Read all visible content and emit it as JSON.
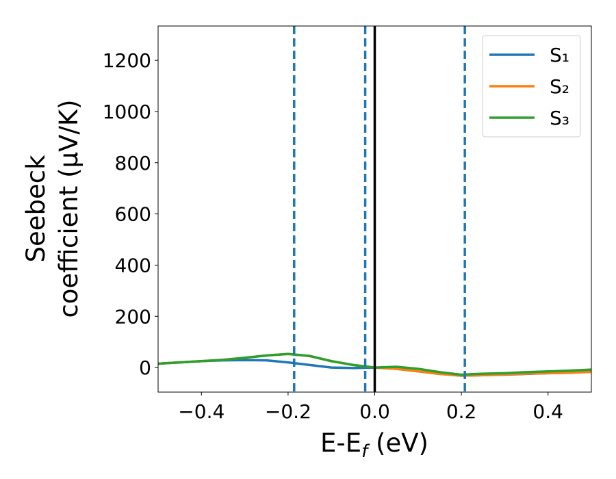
{
  "chart_data": {
    "type": "line",
    "x_label": [
      "E-E",
      "f",
      " (eV)"
    ],
    "y_label": [
      "Seebeck",
      "coefficient  (μV/K)"
    ],
    "x": [
      -0.5,
      -0.45,
      -0.4,
      -0.35,
      -0.3,
      -0.25,
      -0.2,
      -0.15,
      -0.1,
      -0.05,
      0,
      0.05,
      0.1,
      0.15,
      0.2,
      0.25,
      0.3,
      0.35,
      0.4,
      0.45,
      0.5
    ],
    "series": [
      {
        "name": "S₁",
        "color": "#1f77b4",
        "values": [
          15,
          20,
          25,
          28,
          29,
          28,
          20,
          10,
          0,
          -2,
          0,
          -5,
          -15,
          -25,
          -32,
          -30,
          -28,
          -25,
          -22,
          -20,
          -16
        ]
      },
      {
        "name": "S₂",
        "color": "#ff7f0e",
        "values": [
          15,
          20,
          25,
          30,
          38,
          47,
          53,
          45,
          25,
          10,
          0,
          -5,
          -15,
          -25,
          -32,
          -30,
          -27,
          -24,
          -22,
          -20,
          -17
        ]
      },
      {
        "name": "S₃",
        "color": "#2ca02c",
        "values": [
          15,
          20,
          25,
          30,
          38,
          47,
          53,
          45,
          25,
          10,
          0,
          3,
          -5,
          -18,
          -28,
          -24,
          -22,
          -18,
          -15,
          -12,
          -8
        ]
      }
    ],
    "vlines": [
      {
        "x": -0.186,
        "color": "#1f77b4",
        "dashed": true
      },
      {
        "x": -0.022,
        "color": "#1f77b4",
        "dashed": true
      },
      {
        "x": 0,
        "color": "#000000",
        "dashed": false
      },
      {
        "x": 0.208,
        "color": "#1f77b4",
        "dashed": true
      }
    ],
    "xlim": [
      -0.5,
      0.5
    ],
    "ylim": [
      -96,
      1334
    ],
    "xticks": [
      {
        "value": -0.4,
        "label": "−0.4"
      },
      {
        "value": -0.2,
        "label": "−0.2"
      },
      {
        "value": 0,
        "label": "0.0"
      },
      {
        "value": 0.2,
        "label": "0.2"
      },
      {
        "value": 0.4,
        "label": "0.4"
      }
    ],
    "yticks": [
      0,
      200,
      400,
      600,
      800,
      1000,
      1200
    ],
    "legend": "upper right",
    "grid": false
  }
}
